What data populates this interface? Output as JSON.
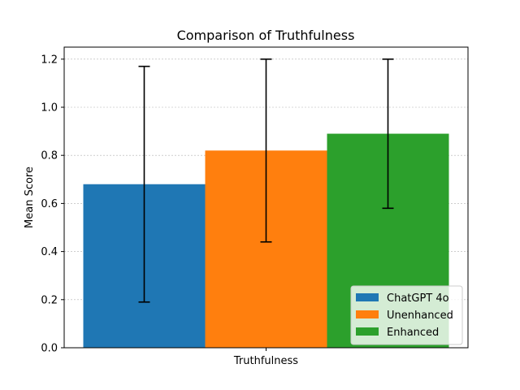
{
  "chart_data": {
    "type": "bar",
    "title": "Comparison of Truthfulness",
    "xlabel": "",
    "ylabel": "Mean Score",
    "categories": [
      "Truthfulness"
    ],
    "series": [
      {
        "name": "ChatGPT 4o",
        "value": 0.68,
        "err_low": 0.19,
        "err_high": 1.17,
        "color": "#1f77b4"
      },
      {
        "name": "Unenhanced",
        "value": 0.82,
        "err_low": 0.44,
        "err_high": 1.2,
        "color": "#ff7f0e"
      },
      {
        "name": "Enhanced",
        "value": 0.89,
        "err_low": 0.58,
        "err_high": 1.2,
        "color": "#2ca02c"
      }
    ],
    "ylim": [
      0,
      1.25
    ],
    "yticks": [
      "0.0",
      "0.2",
      "0.4",
      "0.6",
      "0.8",
      "1.0",
      "1.2"
    ],
    "grid": true,
    "legend_position": "bottom-right"
  }
}
